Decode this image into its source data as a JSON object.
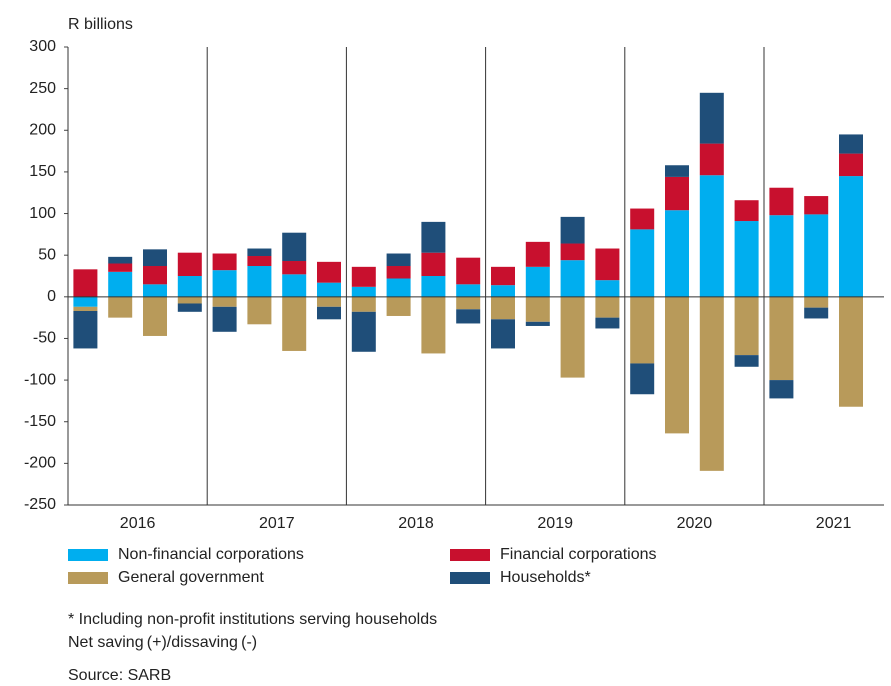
{
  "chart_data": {
    "type": "bar",
    "stacked": true,
    "y_label": "R billions",
    "x_groups": [
      "2016",
      "2017",
      "2018",
      "2019",
      "2020",
      "2021"
    ],
    "categories": [
      null,
      null,
      null,
      null,
      null,
      null,
      null,
      null,
      null,
      null,
      null,
      null,
      null,
      null,
      null,
      null,
      null,
      null,
      null,
      null,
      null,
      null,
      null
    ],
    "series": [
      {
        "name": "Non-financial corporations",
        "color": "#00aeef",
        "values": [
          -12,
          30,
          15,
          25,
          32,
          37,
          27,
          17,
          12,
          22,
          25,
          15,
          14,
          36,
          44,
          20,
          81,
          104,
          146,
          91,
          98,
          99,
          145
        ]
      },
      {
        "name": "Financial corporations",
        "color": "#c8102e",
        "values": [
          33,
          10,
          22,
          28,
          20,
          12,
          16,
          25,
          24,
          15,
          28,
          32,
          22,
          30,
          20,
          38,
          25,
          40,
          38,
          25,
          33,
          22,
          27
        ]
      },
      {
        "name": "General government",
        "color": "#b89a5a",
        "values": [
          -5,
          -25,
          -47,
          -8,
          -12,
          -33,
          -65,
          -12,
          -18,
          -23,
          -68,
          -15,
          -27,
          -30,
          -97,
          -25,
          -80,
          -164,
          -209,
          -70,
          -100,
          -13,
          -132
        ]
      },
      {
        "name": "Households*",
        "color": "#1f4e79",
        "values": [
          -45,
          8,
          20,
          -10,
          -30,
          9,
          34,
          -15,
          -48,
          15,
          37,
          -17,
          -35,
          -5,
          32,
          -13,
          -37,
          14,
          61,
          -14,
          -22,
          -13,
          23
        ]
      }
    ],
    "ylim": [
      -250,
      300
    ],
    "yticks": [
      -250,
      -200,
      -150,
      -100,
      -50,
      0,
      50,
      100,
      150,
      200,
      250,
      300
    ],
    "notes": [
      "* Including non-profit institutions serving households",
      "Net saving (+)/dissaving (-)"
    ],
    "source": "Source:  SARB"
  }
}
